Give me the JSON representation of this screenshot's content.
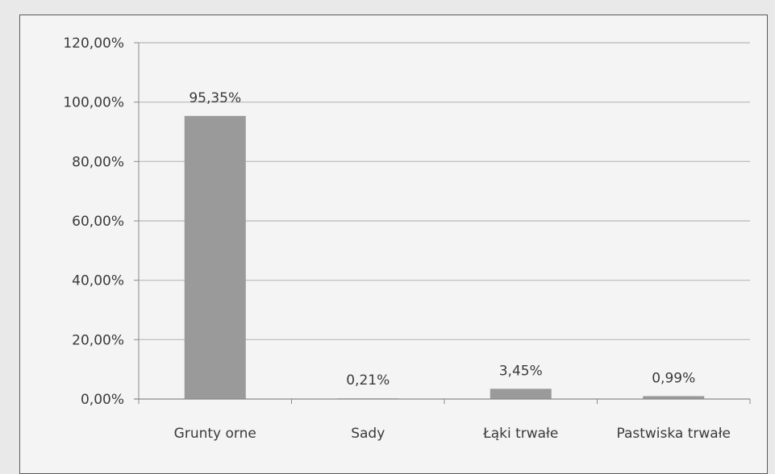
{
  "chart_data": {
    "type": "bar",
    "categories": [
      "Grunty orne",
      "Sady",
      "Łąki trwałe",
      "Pastwiska trwałe"
    ],
    "values": [
      95.35,
      0.21,
      3.45,
      0.99
    ],
    "data_labels": [
      "95,35%",
      "0,21%",
      "3,45%",
      "0,99%"
    ],
    "y_ticks": [
      0,
      20,
      40,
      60,
      80,
      100,
      120
    ],
    "y_tick_labels": [
      "0,00%",
      "20,00%",
      "40,00%",
      "60,00%",
      "80,00%",
      "100,00%",
      "120,00%"
    ],
    "ylim": [
      0,
      120
    ],
    "grid": true,
    "legend": "none",
    "title": "",
    "xlabel": "",
    "ylabel": "",
    "bar_color": "#9a9a9a",
    "grid_color": "#b8b8b8",
    "axis_color": "#8a8a8a"
  }
}
